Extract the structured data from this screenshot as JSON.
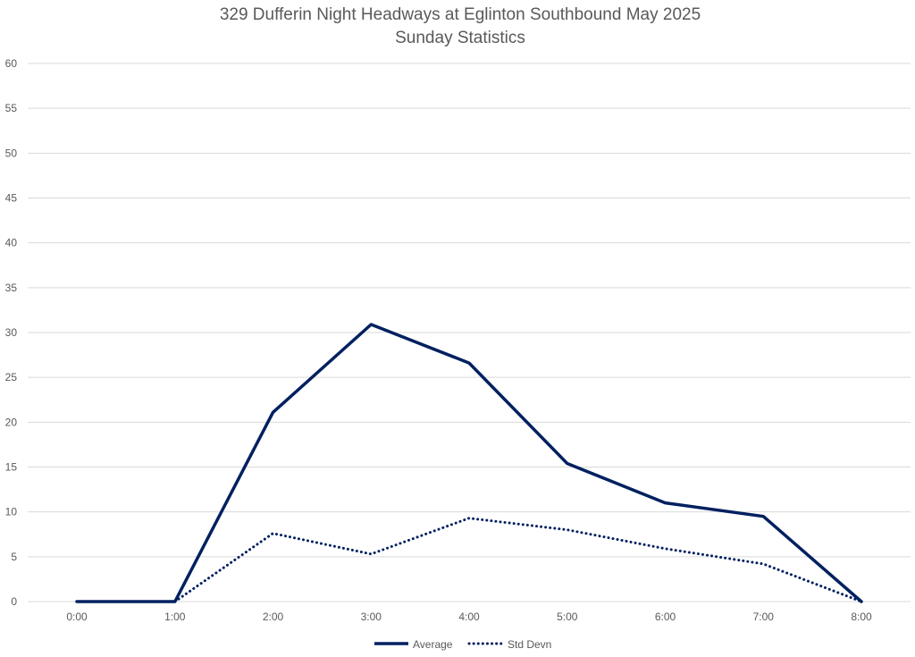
{
  "chart_data": {
    "type": "line",
    "title": "329 Dufferin Night Headways at Eglinton Southbound May 2025",
    "subtitle": "Sunday Statistics",
    "xlabel": "",
    "ylabel": "",
    "categories": [
      "0:00",
      "1:00",
      "2:00",
      "3:00",
      "4:00",
      "5:00",
      "6:00",
      "7:00",
      "8:00"
    ],
    "ylim": [
      0,
      60
    ],
    "yticks": [
      0,
      5,
      10,
      15,
      20,
      25,
      30,
      35,
      40,
      45,
      50,
      55,
      60
    ],
    "grid": true,
    "legend_position": "bottom",
    "series": [
      {
        "name": "Average",
        "values": [
          0,
          0,
          21.1,
          30.9,
          26.6,
          15.4,
          11.0,
          9.5,
          0
        ],
        "color": "#002060",
        "style": "solid"
      },
      {
        "name": "Std Devn",
        "values": [
          null,
          0,
          7.6,
          5.3,
          9.3,
          8.0,
          5.9,
          4.2,
          0
        ],
        "color": "#002060",
        "style": "dotted"
      }
    ]
  }
}
